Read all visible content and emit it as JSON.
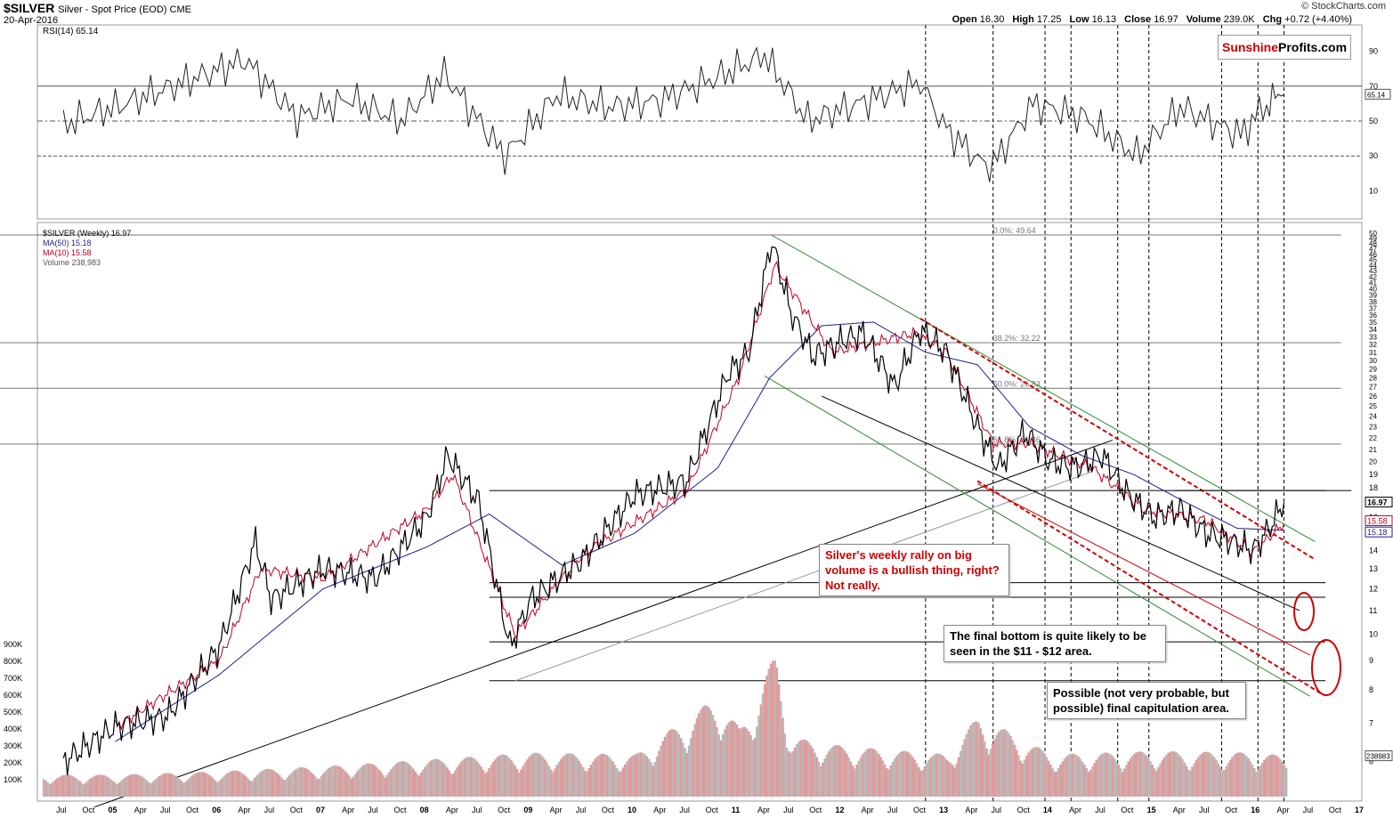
{
  "header": {
    "ticker": "$SILVER",
    "subtitle": "Silver - Spot Price (EOD)  CME",
    "date": "20-Apr-2016",
    "copyright": "© StockCharts.com",
    "ohlc": [
      {
        "label": "Open",
        "value": "16.30"
      },
      {
        "label": "High",
        "value": "17.25"
      },
      {
        "label": "Low",
        "value": "16.13"
      },
      {
        "label": "Close",
        "value": "16.97"
      },
      {
        "label": "Volume",
        "value": "239.0K"
      },
      {
        "label": "Chg",
        "value": "+0.72 (+4.40%)"
      }
    ]
  },
  "logo": {
    "part1": "Sunshine",
    "part2": "Profits.com"
  },
  "colors": {
    "price": "#000000",
    "ma50": "#1f1f8f",
    "ma10": "#c00020",
    "volume_up": "#b9b9b9",
    "volume_down": "#e59a9a",
    "channel": "#2e8b2e",
    "red_dash": "#d00000",
    "rsi_over": "#3f6b3f",
    "rsi_under": "#8e5555",
    "callout_red": "#cc0000"
  },
  "chart_data": [
    {
      "type": "line",
      "title": "RSI(14) 65.14",
      "ylim": [
        0,
        100
      ],
      "y_ticks": [
        "90",
        "70",
        "50",
        "30",
        "10"
      ],
      "levels": [
        70,
        50,
        30
      ],
      "last_value": "65.14",
      "x": [
        "2004-Jul",
        "2005-Jan",
        "2005-Jun",
        "2006-Apr",
        "2006-Oct",
        "2007-Apr",
        "2007-Oct",
        "2008-Mar",
        "2008-Oct",
        "2009-Apr",
        "2009-Oct",
        "2010-Apr",
        "2010-Nov",
        "2011-Apr",
        "2011-Sep",
        "2012-Apr",
        "2012-Oct",
        "2013-Jan",
        "2013-Jun",
        "2013-Nov",
        "2014-May",
        "2014-Nov",
        "2015-Apr",
        "2015-Nov",
        "2016-Feb",
        "2016-Apr"
      ],
      "values": [
        48,
        58,
        67,
        85,
        52,
        63,
        50,
        77,
        30,
        65,
        58,
        62,
        76,
        88,
        50,
        62,
        72,
        45,
        22,
        60,
        52,
        30,
        58,
        42,
        60,
        65
      ]
    },
    {
      "type": "line",
      "title": "$SILVER (Weekly) 16.97",
      "xlabel_ticks": [
        "Jul",
        "Oct",
        "05",
        "Apr",
        "Jul",
        "Oct",
        "06",
        "Apr",
        "Jul",
        "Oct",
        "07",
        "Apr",
        "Jul",
        "Oct",
        "08",
        "Apr",
        "Jul",
        "Oct",
        "09",
        "Apr",
        "Jul",
        "Oct",
        "10",
        "Apr",
        "Jul",
        "Oct",
        "11",
        "Apr",
        "Jul",
        "Oct",
        "12",
        "Apr",
        "Jul",
        "Oct",
        "13",
        "Apr",
        "Jul",
        "Oct",
        "14",
        "Apr",
        "Jul",
        "Oct",
        "15",
        "Apr",
        "Jul",
        "Oct",
        "16",
        "Apr",
        "Jul",
        "Oct",
        "17"
      ],
      "y_ticks": [
        "50",
        "49",
        "48",
        "47",
        "46",
        "45",
        "44",
        "43",
        "42",
        "41",
        "40",
        "39",
        "38",
        "37",
        "36",
        "35",
        "34",
        "33",
        "32",
        "31",
        "30",
        "29",
        "28",
        "27",
        "26",
        "25",
        "24",
        "23",
        "22",
        "21",
        "20",
        "19",
        "18",
        "17",
        "16",
        "15",
        "14",
        "13",
        "12",
        "11",
        "10",
        "9",
        "8",
        "7",
        "6"
      ],
      "scale": "log",
      "ylim": [
        5.5,
        50
      ],
      "series": [
        {
          "name": "$SILVER (Weekly) 16.97",
          "x": [
            2004.5,
            2005.0,
            2005.5,
            2006.0,
            2006.35,
            2006.5,
            2007.0,
            2007.5,
            2008.0,
            2008.2,
            2008.5,
            2008.8,
            2009.0,
            2009.5,
            2010.0,
            2010.5,
            2010.9,
            2011.1,
            2011.32,
            2011.5,
            2011.72,
            2012.0,
            2012.2,
            2012.5,
            2012.75,
            2013.0,
            2013.3,
            2013.5,
            2013.75,
            2014.0,
            2014.25,
            2014.5,
            2014.75,
            2015.0,
            2015.25,
            2015.5,
            2015.75,
            2015.95,
            2016.1,
            2016.25
          ],
          "values": [
            6.0,
            6.9,
            7.2,
            9.5,
            14.5,
            11.5,
            13.0,
            12.5,
            16.0,
            20.5,
            17.0,
            9.5,
            11.5,
            13.5,
            17.5,
            18.5,
            28.5,
            31.0,
            48.5,
            36.5,
            30.5,
            32.5,
            33.5,
            27.0,
            34.0,
            31.0,
            23.0,
            19.5,
            22.5,
            20.0,
            19.5,
            20.5,
            17.5,
            16.0,
            16.5,
            15.0,
            14.5,
            14.0,
            15.2,
            16.97
          ]
        },
        {
          "name": "MA(50) 15.18",
          "x": [
            2005.0,
            2006.0,
            2007.0,
            2008.0,
            2008.6,
            2009.3,
            2010.0,
            2010.8,
            2011.3,
            2011.8,
            2012.3,
            2012.8,
            2013.3,
            2013.8,
            2014.3,
            2014.8,
            2015.3,
            2015.8,
            2016.25
          ],
          "values": [
            6.5,
            8.5,
            12.0,
            14.2,
            16.2,
            13.2,
            15.0,
            19.5,
            28.0,
            34.5,
            35.0,
            31.0,
            29.5,
            23.0,
            20.5,
            19.0,
            17.0,
            15.3,
            15.18
          ]
        },
        {
          "name": "MA(10) 15.58",
          "x": [
            2005.0,
            2006.0,
            2006.4,
            2007.0,
            2008.0,
            2008.25,
            2008.85,
            2009.5,
            2010.5,
            2011.0,
            2011.35,
            2011.9,
            2012.7,
            2013.0,
            2013.45,
            2013.8,
            2014.4,
            2014.9,
            2015.5,
            2015.95,
            2016.25
          ],
          "values": [
            6.9,
            9.0,
            13.0,
            12.5,
            16.5,
            19.0,
            10.0,
            13.8,
            17.8,
            28.0,
            44.0,
            31.0,
            33.5,
            31.0,
            21.5,
            21.5,
            19.5,
            16.5,
            15.8,
            13.9,
            15.58
          ]
        },
        {
          "name": "Volume 238,983",
          "x": [
            2005.0,
            2006.0,
            2007.0,
            2008.0,
            2009.0,
            2010.0,
            2010.8,
            2011.0,
            2011.35,
            2011.5,
            2012.0,
            2013.0,
            2013.3,
            2014.0,
            2015.0,
            2016.0,
            2016.25
          ],
          "values": [
            130000,
            150000,
            180000,
            220000,
            260000,
            250000,
            600000,
            400000,
            850000,
            350000,
            300000,
            250000,
            480000,
            250000,
            270000,
            260000,
            238983
          ]
        }
      ],
      "volume_ticks": [
        "900K",
        "800K",
        "700K",
        "600K",
        "500K",
        "400K",
        "300K",
        "200K",
        "100K"
      ],
      "volume_last_label": "238983",
      "right_labels": {
        "price": "16.97",
        "ma10": "15.58",
        "ma50": "15.18"
      },
      "fib_levels": [
        {
          "label": "0.0%: 49.64",
          "value": 49.64
        },
        {
          "label": "38.2%: 32.22",
          "value": 32.22
        },
        {
          "label": "50.0%: 26.83",
          "value": 26.83
        },
        {
          "label": "61.8%: 21.46",
          "value": 21.46
        }
      ],
      "horizontal_levels": [
        17.8,
        12.3,
        11.6,
        9.7,
        8.3
      ],
      "vertical_dates": [
        2012.8,
        2013.45,
        2013.95,
        2014.2,
        2014.65,
        2014.95,
        2015.65,
        2016.0,
        2016.25
      ],
      "legend": [
        "$SILVER (Weekly) 16.97",
        "MA(50) 15.18",
        "MA(10) 15.58",
        "Volume 238,983"
      ]
    }
  ],
  "annotations": {
    "rally": "Silver's weekly rally on big volume is a bullish thing, right? Not really.",
    "bottom": "The final bottom is quite likely to be seen in the $11 - $12 area.",
    "capitulation": "Possible (not very probable, but possible) final capitulation area."
  }
}
